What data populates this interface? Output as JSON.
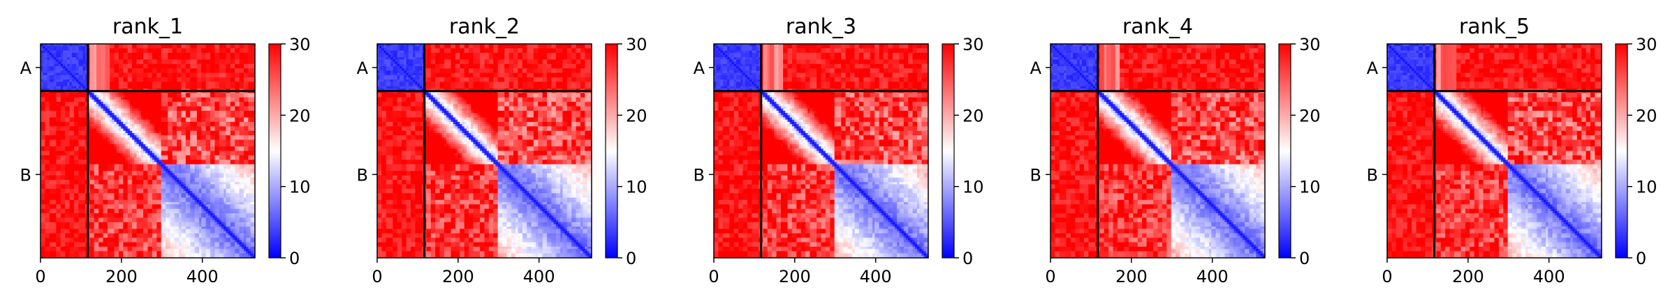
{
  "chart_data": [
    {
      "type": "heatmap",
      "title": "rank_1",
      "chain_labels": [
        "A",
        "B"
      ],
      "chain_boundary": 117,
      "x_ticks": [
        0,
        200,
        400
      ],
      "xlim": [
        0,
        530
      ],
      "colorbar": {
        "ticks": [
          0,
          10,
          20,
          30
        ],
        "range": [
          0,
          30
        ],
        "colors": [
          "#0000ff",
          "#ffffff",
          "#ff0000"
        ]
      },
      "grid": false,
      "structure": {
        "block_split": 300,
        "a_block_low": true,
        "a_inter_mid_strip": 50
      }
    },
    {
      "type": "heatmap",
      "title": "rank_2",
      "chain_labels": [
        "A",
        "B"
      ],
      "chain_boundary": 117,
      "x_ticks": [
        0,
        200,
        400
      ],
      "xlim": [
        0,
        530
      ],
      "colorbar": {
        "ticks": [
          0,
          10,
          20,
          30
        ],
        "range": [
          0,
          30
        ],
        "colors": [
          "#0000ff",
          "#ffffff",
          "#ff0000"
        ]
      },
      "grid": false,
      "structure": {
        "block_split": 300,
        "a_block_low": true,
        "a_inter_mid_strip": 0
      }
    },
    {
      "type": "heatmap",
      "title": "rank_3",
      "chain_labels": [
        "A",
        "B"
      ],
      "chain_boundary": 117,
      "x_ticks": [
        0,
        200,
        400
      ],
      "xlim": [
        0,
        530
      ],
      "colorbar": {
        "ticks": [
          0,
          10,
          20,
          30
        ],
        "range": [
          0,
          30
        ],
        "colors": [
          "#0000ff",
          "#ffffff",
          "#ff0000"
        ]
      },
      "grid": false,
      "structure": {
        "block_split": 300,
        "a_block_low": true,
        "a_inter_mid_strip": 50
      }
    },
    {
      "type": "heatmap",
      "title": "rank_4",
      "chain_labels": [
        "A",
        "B"
      ],
      "chain_boundary": 117,
      "x_ticks": [
        0,
        200,
        400
      ],
      "xlim": [
        0,
        530
      ],
      "colorbar": {
        "ticks": [
          0,
          10,
          20,
          30
        ],
        "range": [
          0,
          30
        ],
        "colors": [
          "#0000ff",
          "#ffffff",
          "#ff0000"
        ]
      },
      "grid": false,
      "structure": {
        "block_split": 300,
        "a_block_low": true,
        "a_inter_mid_strip": 50
      }
    },
    {
      "type": "heatmap",
      "title": "rank_5",
      "chain_labels": [
        "A",
        "B"
      ],
      "chain_boundary": 117,
      "x_ticks": [
        0,
        200,
        400
      ],
      "xlim": [
        0,
        530
      ],
      "colorbar": {
        "ticks": [
          0,
          10,
          20,
          30
        ],
        "range": [
          0,
          30
        ],
        "colors": [
          "#0000ff",
          "#ffffff",
          "#ff0000"
        ]
      },
      "grid": false,
      "structure": {
        "block_split": 300,
        "a_block_low": true,
        "a_inter_mid_strip": 50
      }
    }
  ]
}
